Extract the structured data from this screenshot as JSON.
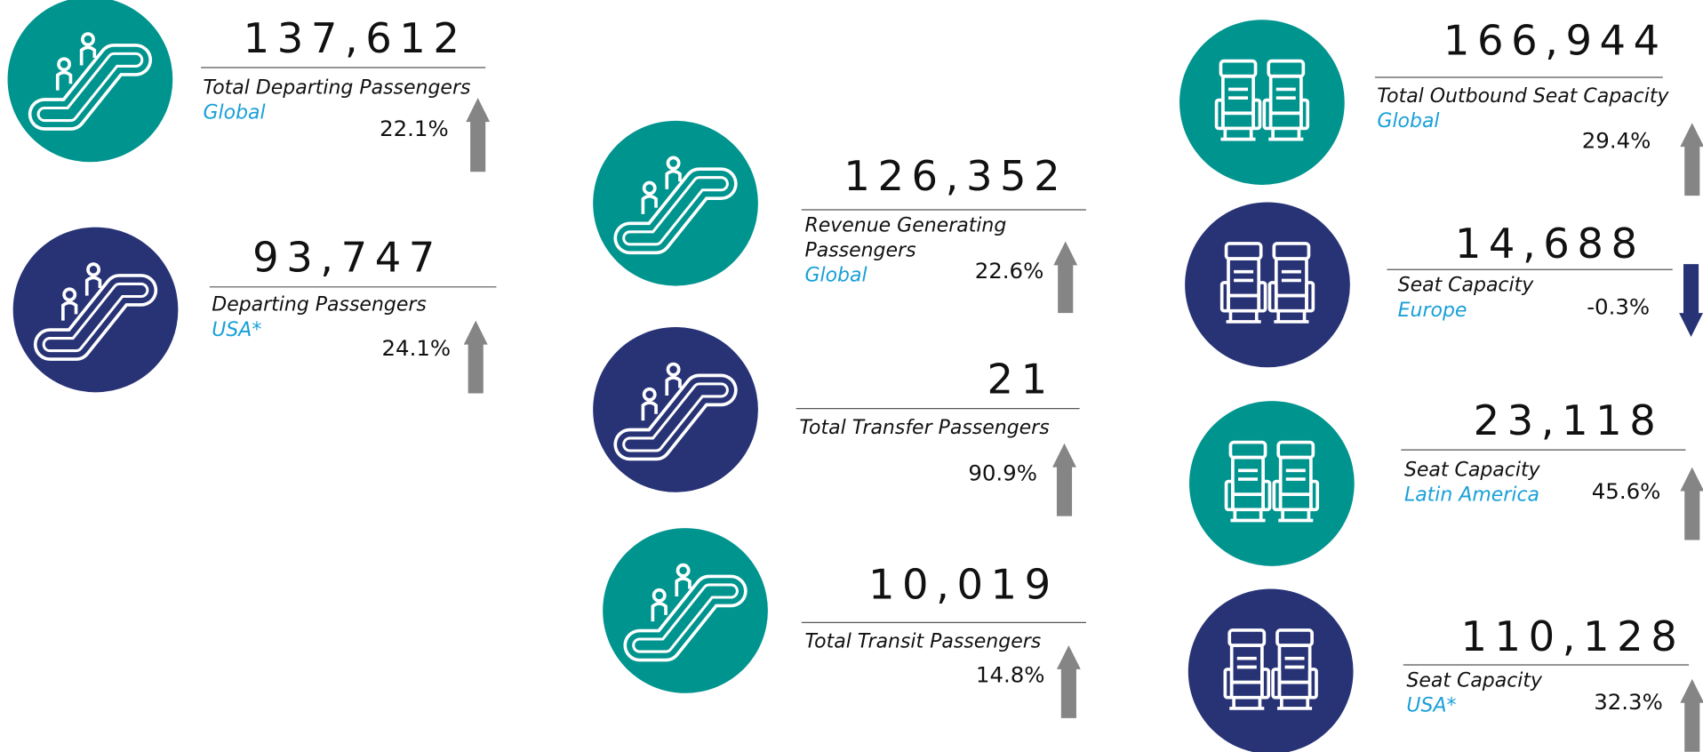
{
  "colors": {
    "teal": "#00948f",
    "navy": "#283376",
    "region": "#1aa0d8",
    "up": "#858585",
    "down": "#283376"
  },
  "cards": [
    {
      "value": "137,612",
      "label": [
        "Total Departing Passengers"
      ],
      "region": "Global",
      "change": "22.1%",
      "color": "teal"
    },
    {
      "value": "93,747",
      "label": [
        "Departing Passengers"
      ],
      "region": "USA*",
      "change": "24.1%",
      "color": "navy"
    },
    {
      "value": "126,352",
      "label": [
        "Revenue Generating",
        "Passengers"
      ],
      "region": "Global",
      "change": "22.6%",
      "color": "teal"
    },
    {
      "value": "21",
      "label": [
        "Total Transfer Passengers"
      ],
      "change": "90.9%",
      "color": "navy"
    },
    {
      "value": "10,019",
      "label": [
        "Total Transit Passengers"
      ],
      "change": "14.8%",
      "color": "teal"
    },
    {
      "value": "166,944",
      "label": [
        "Total Outbound Seat Capacity"
      ],
      "region": "Global",
      "change": "29.4%",
      "color": "teal"
    },
    {
      "value": "14,688",
      "label": [
        "Seat Capacity"
      ],
      "region": "Europe",
      "change": "-0.3%",
      "color": "navy"
    },
    {
      "value": "23,118",
      "label": [
        "Seat Capacity"
      ],
      "region": "Latin America",
      "change": "45.6%",
      "color": "teal"
    },
    {
      "value": "110,128",
      "label": [
        "Seat Capacity"
      ],
      "region": "USA*",
      "change": "32.3%",
      "color": "navy"
    }
  ]
}
